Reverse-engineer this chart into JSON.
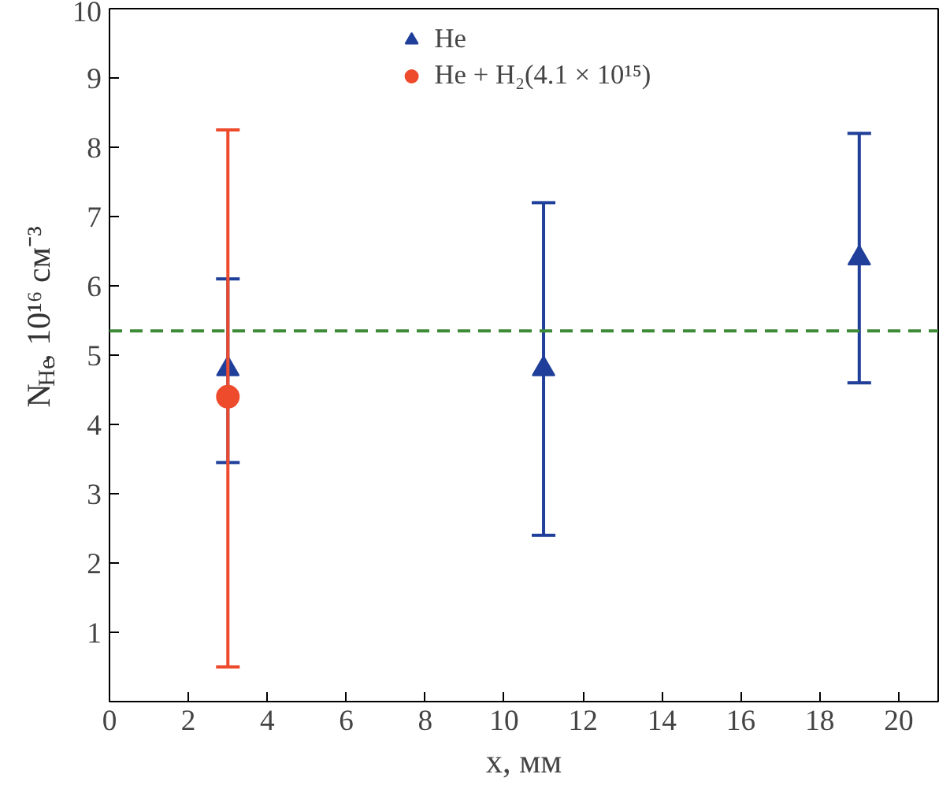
{
  "chart_data": {
    "type": "scatter",
    "xlabel": "x, мм",
    "ylabel": "N$_{He}$, 10¹⁶ см⁻³",
    "xlim": [
      0,
      21
    ],
    "xticks": [
      0,
      2,
      4,
      6,
      8,
      10,
      12,
      14,
      16,
      18,
      20
    ],
    "ylim": [
      0,
      10
    ],
    "yticks": [
      1,
      2,
      3,
      4,
      5,
      6,
      7,
      8,
      9,
      10
    ],
    "series": [
      {
        "name": "He",
        "color": "#1f3f9a",
        "marker": "triangle",
        "x": [
          3,
          11,
          19
        ],
        "values": [
          4.8,
          4.8,
          6.4
        ],
        "errors": [
          [
            3.45,
            6.1
          ],
          [
            2.4,
            7.2
          ],
          [
            4.6,
            8.2
          ]
        ]
      },
      {
        "name": "He + H₂(4.1 × 10¹⁵)",
        "color": "#ee4a2c",
        "marker": "circle",
        "x": [
          3
        ],
        "values": [
          4.4
        ],
        "errors": [
          [
            0.5,
            8.25
          ]
        ]
      }
    ],
    "ref_lines": [
      {
        "axis": "y",
        "value": 5.35,
        "color": "#3d8b37",
        "line_style": "dashed"
      }
    ],
    "legend": "top",
    "grid": false
  }
}
